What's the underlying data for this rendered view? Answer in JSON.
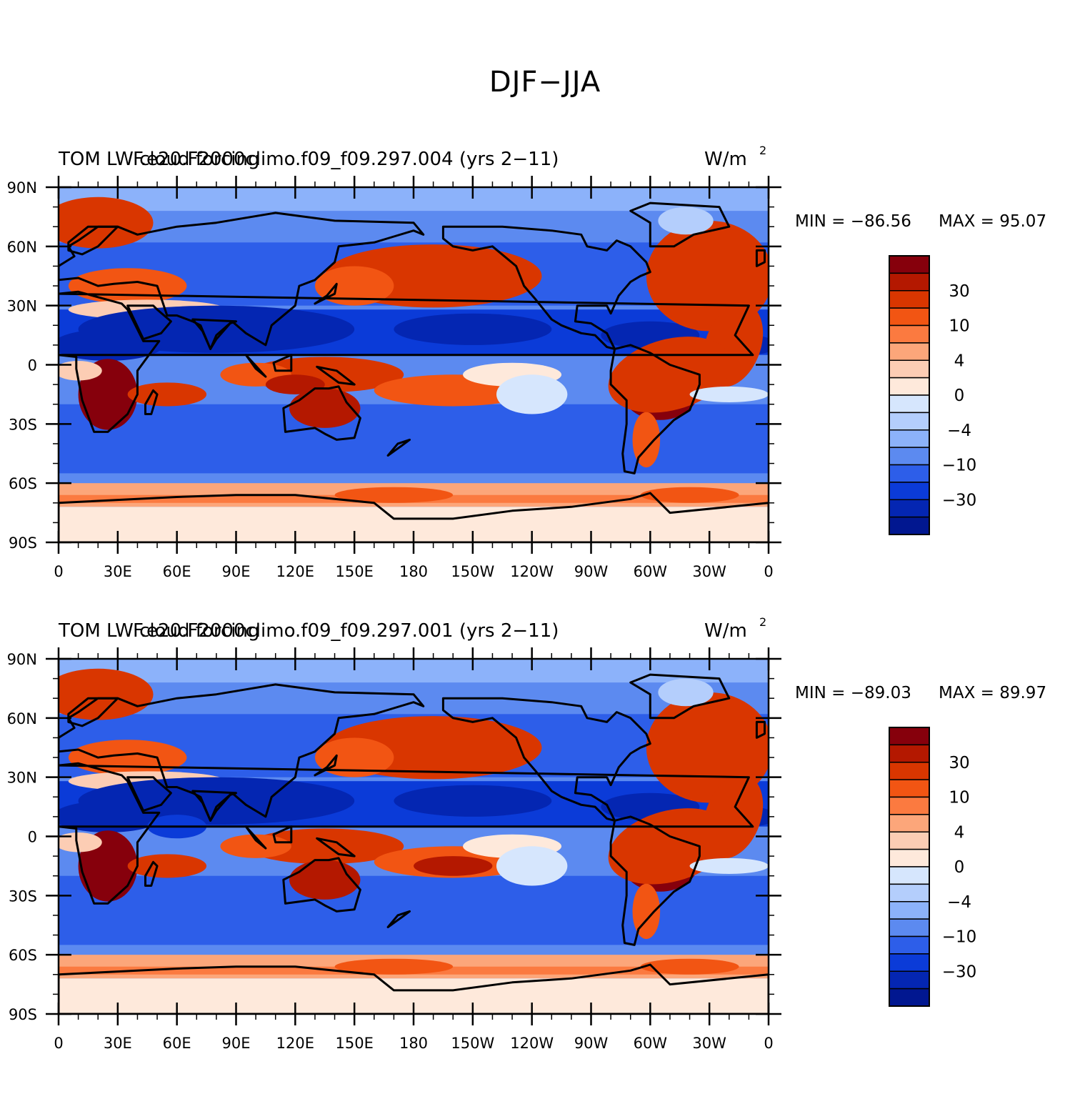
{
  "title": "DJF−JJA",
  "units": "W/m²",
  "units_base": "W/m",
  "units_sup": "2",
  "colorbar": {
    "colors": [
      "#86000c",
      "#b41800",
      "#d93600",
      "#f25513",
      "#fb7a40",
      "#fca67a",
      "#fccdb4",
      "#fee9db",
      "#d6e6fd",
      "#b4cefc",
      "#8cb2fa",
      "#5c8af0",
      "#2d5ee9",
      "#0b3bd8",
      "#0426b2",
      "#011790"
    ],
    "labels": [
      "30",
      "10",
      "4",
      "0",
      "−4",
      "−10",
      "−30"
    ]
  },
  "axes": {
    "lat_labels": [
      "90N",
      "60N",
      "30N",
      "0",
      "30S",
      "60S",
      "90S"
    ],
    "lon_labels": [
      "0",
      "30E",
      "60E",
      "90E",
      "120E",
      "150E",
      "180",
      "150W",
      "120W",
      "90W",
      "60W",
      "30W",
      "0"
    ]
  },
  "panels": [
    {
      "left_title": "TOM LW cloud forcing",
      "center_title": "F.e20.F2000climo.f09_f09.297.004 (yrs 2−11)",
      "min_text": "MIN = −86.56",
      "max_text": "MAX =  95.07"
    },
    {
      "left_title": "TOM LW cloud forcing",
      "center_title": "F.e20.F2000climo.f09_f09.297.001 (yrs 2−11)",
      "min_text": "MIN = −89.03",
      "max_text": "MAX =  89.97"
    }
  ]
}
